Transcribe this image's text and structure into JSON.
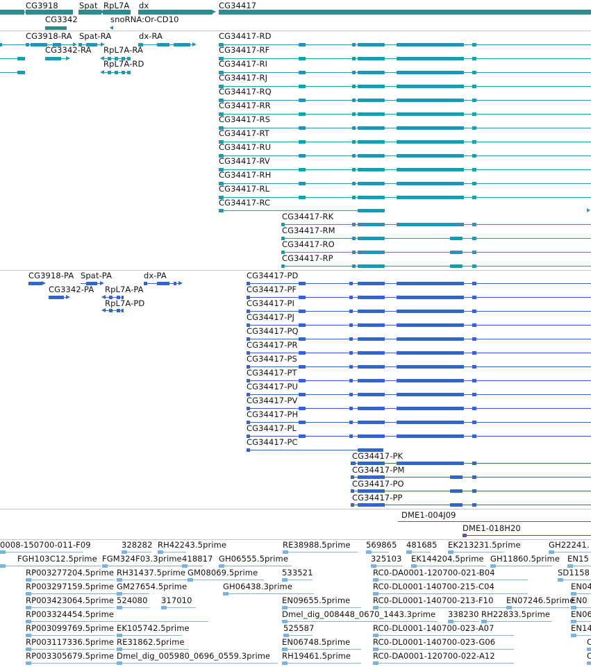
{
  "colors": {
    "gene": "#2e8b8b",
    "transcript": "#1a9bb5",
    "protein": "#3366cc",
    "clone": "#6a4fa3",
    "est": "#7ab3e0",
    "separator": "#c8c8c8"
  },
  "tracks": {
    "genes": {
      "features": [
        {
          "label": "CG3918"
        },
        {
          "label": "Spat"
        },
        {
          "label": "RpL7A"
        },
        {
          "label": "dx"
        },
        {
          "label": "CG34417"
        },
        {
          "label": "CG3342"
        },
        {
          "label": "snoRNA:Or-CD10"
        }
      ]
    },
    "transcripts": {
      "features": [
        {
          "label": "CG3918-RA"
        },
        {
          "label": "Spat-RA"
        },
        {
          "label": "dx-RA"
        },
        {
          "label": "CG3342-RA"
        },
        {
          "label": "RpL7A-RA"
        },
        {
          "label": "RpL7A-RD"
        },
        {
          "label": "CG34417-RD"
        },
        {
          "label": "CG34417-RF"
        },
        {
          "label": "CG34417-RI"
        },
        {
          "label": "CG34417-RJ"
        },
        {
          "label": "CG34417-RQ"
        },
        {
          "label": "CG34417-RR"
        },
        {
          "label": "CG34417-RS"
        },
        {
          "label": "CG34417-RT"
        },
        {
          "label": "CG34417-RU"
        },
        {
          "label": "CG34417-RV"
        },
        {
          "label": "CG34417-RH"
        },
        {
          "label": "CG34417-RL"
        },
        {
          "label": "CG34417-RC"
        },
        {
          "label": "CG34417-RK"
        },
        {
          "label": "CG34417-RM"
        },
        {
          "label": "CG34417-RO"
        },
        {
          "label": "CG34417-RP"
        }
      ]
    },
    "proteins": {
      "features": [
        {
          "label": "CG3918-PA"
        },
        {
          "label": "Spat-PA"
        },
        {
          "label": "dx-PA"
        },
        {
          "label": "CG3342-PA"
        },
        {
          "label": "RpL7A-PA"
        },
        {
          "label": "RpL7A-PD"
        },
        {
          "label": "CG34417-PD"
        },
        {
          "label": "CG34417-PF"
        },
        {
          "label": "CG34417-PI"
        },
        {
          "label": "CG34417-PJ"
        },
        {
          "label": "CG34417-PQ"
        },
        {
          "label": "CG34417-PR"
        },
        {
          "label": "CG34417-PS"
        },
        {
          "label": "CG34417-PT"
        },
        {
          "label": "CG34417-PU"
        },
        {
          "label": "CG34417-PV"
        },
        {
          "label": "CG34417-PH"
        },
        {
          "label": "CG34417-PL"
        },
        {
          "label": "CG34417-PC"
        },
        {
          "label": "CG34417-PK"
        },
        {
          "label": "CG34417-PM"
        },
        {
          "label": "CG34417-PO"
        },
        {
          "label": "CG34417-PP"
        }
      ]
    },
    "clones": {
      "features": [
        {
          "label": "DME1-004J09"
        },
        {
          "label": "DME1-018H20"
        }
      ]
    },
    "ests": {
      "features": [
        {
          "label": "0008-150700-011-F09"
        },
        {
          "label": "328282"
        },
        {
          "label": "RH42243.5prime"
        },
        {
          "label": "RE38988.5prime"
        },
        {
          "label": "569865"
        },
        {
          "label": "481685"
        },
        {
          "label": "EK213231.5prime"
        },
        {
          "label": "GH22241."
        },
        {
          "label": "FGH103C12.5prime"
        },
        {
          "label": "FGM324F03.3prime"
        },
        {
          "label": "418817"
        },
        {
          "label": "GH06555.5prime"
        },
        {
          "label": "325103"
        },
        {
          "label": "EK144204.5prime"
        },
        {
          "label": "GH11860.5prime"
        },
        {
          "label": "EN15"
        },
        {
          "label": "RP003277204.5prime"
        },
        {
          "label": "RH31437.5prime"
        },
        {
          "label": "GM08069.5prime"
        },
        {
          "label": "533521"
        },
        {
          "label": "RC0-DA0001-120700-021-B04"
        },
        {
          "label": "SD1158"
        },
        {
          "label": "RP003297159.5prime"
        },
        {
          "label": "GM27654.5prime"
        },
        {
          "label": "GH06438.3prime"
        },
        {
          "label": "RC0-DL0001-140700-215-C04"
        },
        {
          "label": "EN04"
        },
        {
          "label": "RP003423064.5prime"
        },
        {
          "label": "524080"
        },
        {
          "label": "317010"
        },
        {
          "label": "EN09655.5prime"
        },
        {
          "label": "RC0-DL0001-140700-213-F10"
        },
        {
          "label": "EN07246.5prime"
        },
        {
          "label": "EN0"
        },
        {
          "label": "RP003324454.5prime"
        },
        {
          "label": "Dmel_dig_008448_0670_1443.3prime"
        },
        {
          "label": "338230"
        },
        {
          "label": "RH22833.5prime"
        },
        {
          "label": "EN06"
        },
        {
          "label": "RP003099769.5prime"
        },
        {
          "label": "EK105742.5prime"
        },
        {
          "label": "525587"
        },
        {
          "label": "RC0-DL0001-140700-023-A07"
        },
        {
          "label": "EN14"
        },
        {
          "label": "RP003117336.5prime"
        },
        {
          "label": "RE31862.5prime"
        },
        {
          "label": "EN06748.5prime"
        },
        {
          "label": "RC0-DL0001-140700-023-G06"
        },
        {
          "label": "C"
        },
        {
          "label": "RP003305679.5prime"
        },
        {
          "label": "Dmel_dig_005980_0696_0559.3prime"
        },
        {
          "label": "RH19461.5prime"
        },
        {
          "label": "RC0-DA0001-120700-022-A12"
        },
        {
          "label": "C"
        }
      ]
    }
  }
}
